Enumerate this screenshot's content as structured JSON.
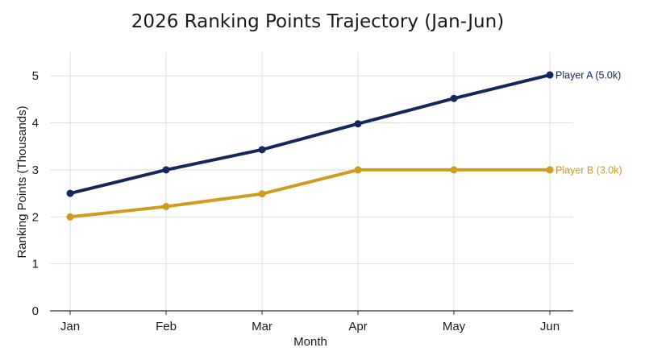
{
  "chart_data": {
    "type": "line",
    "title": "2026 Ranking Points Trajectory (Jan-Jun)",
    "xlabel": "Month",
    "ylabel": "Ranking Points (Thousands)",
    "categories": [
      "Jan",
      "Feb",
      "Mar",
      "Apr",
      "May",
      "Jun"
    ],
    "ylim": [
      0,
      5.5
    ],
    "yticks": [
      0,
      1,
      2,
      3,
      4,
      5
    ],
    "grid": true,
    "series": [
      {
        "name": "Player A",
        "end_label": "Player A (5.0k)",
        "color": "#13295b",
        "values": [
          2.5,
          3.0,
          3.43,
          3.98,
          4.52,
          5.02
        ]
      },
      {
        "name": "Player B",
        "end_label": "Player B (3.0k)",
        "color": "#d19b1d",
        "values": [
          2.0,
          2.22,
          2.49,
          3.0,
          3.0,
          3.0
        ]
      }
    ]
  }
}
